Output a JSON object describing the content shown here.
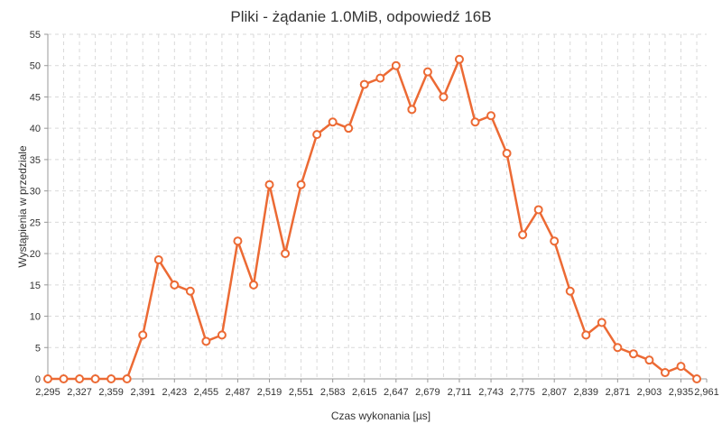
{
  "chart_data": {
    "type": "line",
    "title": "Pliki - żądanie 1.0MiB, odpowiedź 16B",
    "xlabel": "Czas wykonania [µs]",
    "ylabel": "Wystąpienia w przedziale",
    "xlim": [
      2295,
      2961
    ],
    "ylim": [
      0,
      55
    ],
    "grid": true,
    "x_ticks": [
      {
        "value": 2295,
        "label": "2,295"
      },
      {
        "value": 2327,
        "label": "2,327"
      },
      {
        "value": 2359,
        "label": "2,359"
      },
      {
        "value": 2391,
        "label": "2,391"
      },
      {
        "value": 2423,
        "label": "2,423"
      },
      {
        "value": 2455,
        "label": "2,455"
      },
      {
        "value": 2487,
        "label": "2,487"
      },
      {
        "value": 2519,
        "label": "2,519"
      },
      {
        "value": 2551,
        "label": "2,551"
      },
      {
        "value": 2583,
        "label": "2,583"
      },
      {
        "value": 2615,
        "label": "2,615"
      },
      {
        "value": 2647,
        "label": "2,647"
      },
      {
        "value": 2679,
        "label": "2,679"
      },
      {
        "value": 2711,
        "label": "2,711"
      },
      {
        "value": 2743,
        "label": "2,743"
      },
      {
        "value": 2775,
        "label": "2,775"
      },
      {
        "value": 2807,
        "label": "2,807"
      },
      {
        "value": 2839,
        "label": "2,839"
      },
      {
        "value": 2871,
        "label": "2,871"
      },
      {
        "value": 2903,
        "label": "2,903"
      },
      {
        "value": 2935,
        "label": "2,935"
      },
      {
        "value": 2961,
        "label": "2,961"
      }
    ],
    "y_ticks": [
      0,
      5,
      10,
      15,
      20,
      25,
      30,
      35,
      40,
      45,
      50,
      55
    ],
    "series": [
      {
        "color": "#ec6a34",
        "x": [
          2295,
          2311,
          2327,
          2343,
          2359,
          2375,
          2391,
          2407,
          2423,
          2439,
          2455,
          2471,
          2487,
          2503,
          2519,
          2535,
          2551,
          2567,
          2583,
          2599,
          2615,
          2631,
          2647,
          2663,
          2679,
          2695,
          2711,
          2727,
          2743,
          2759,
          2775,
          2791,
          2807,
          2823,
          2839,
          2855,
          2871,
          2887,
          2903,
          2919,
          2935,
          2951
        ],
        "values": [
          0,
          0,
          0,
          0,
          0,
          0,
          7,
          19,
          15,
          14,
          6,
          7,
          22,
          15,
          31,
          20,
          31,
          39,
          41,
          40,
          47,
          48,
          50,
          43,
          49,
          45,
          51,
          41,
          42,
          36,
          23,
          27,
          22,
          14,
          7,
          9,
          5,
          4,
          3,
          1,
          2,
          0
        ]
      }
    ]
  }
}
